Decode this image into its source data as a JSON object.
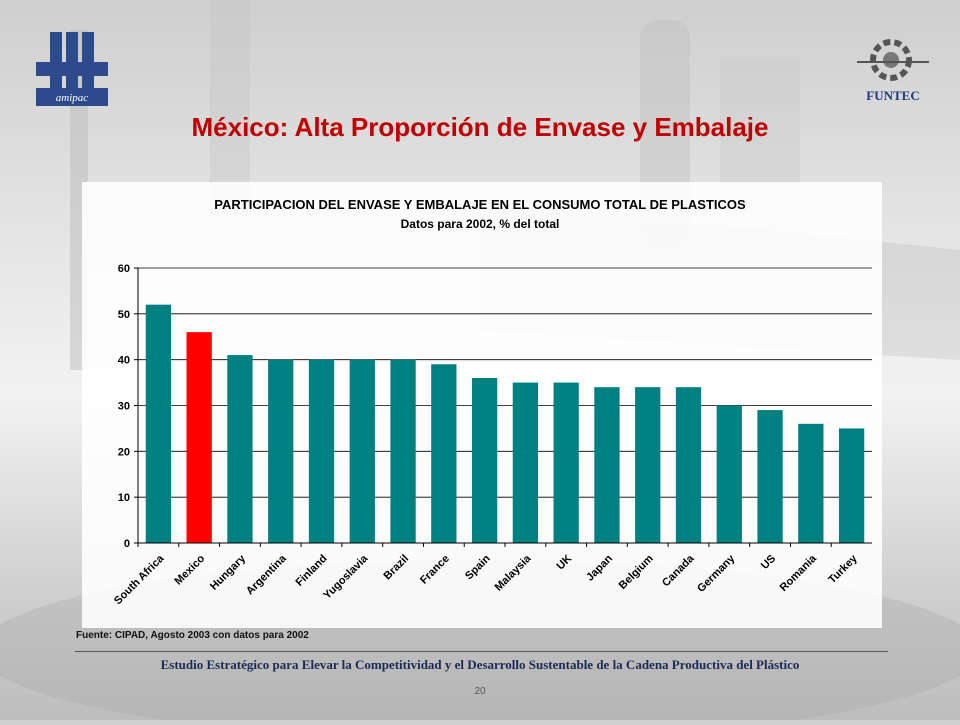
{
  "slide": {
    "title": "México: Alta Proporción de Envase y Embalaje",
    "source": "Fuente: CIPAD, Agosto 2003 con datos para 2002",
    "footer": "Estudio Estratégico para Elevar la Competitividad y el Desarrollo Sustentable de la Cadena Productiva del Plástico",
    "page_number": "20",
    "logos": {
      "left": "amipac",
      "right": "FUNTEC"
    }
  },
  "colors": {
    "bar": "#008080",
    "highlight": "#ff0000",
    "title": "#c00000"
  },
  "chart_data": {
    "type": "bar",
    "title": "PARTICIPACION DEL ENVASE Y EMBALAJE EN EL CONSUMO TOTAL DE PLASTICOS",
    "subtitle": "Datos para 2002, % del total",
    "xlabel": "",
    "ylabel": "",
    "ylim": [
      0,
      60
    ],
    "yticks": [
      0,
      10,
      20,
      30,
      40,
      50,
      60
    ],
    "grid": true,
    "highlight_category": "Mexico",
    "categories": [
      "South Africa",
      "Mexico",
      "Hungary",
      "Argentina",
      "Finland",
      "Yugoslavia",
      "Brazil",
      "France",
      "Spain",
      "Malaysia",
      "UK",
      "Japan",
      "Belgium",
      "Canada",
      "Germany",
      "US",
      "Romania",
      "Turkey"
    ],
    "values": [
      52,
      46,
      41,
      40,
      40,
      40,
      40,
      39,
      36,
      35,
      35,
      34,
      34,
      34,
      30,
      29,
      26,
      25
    ]
  }
}
